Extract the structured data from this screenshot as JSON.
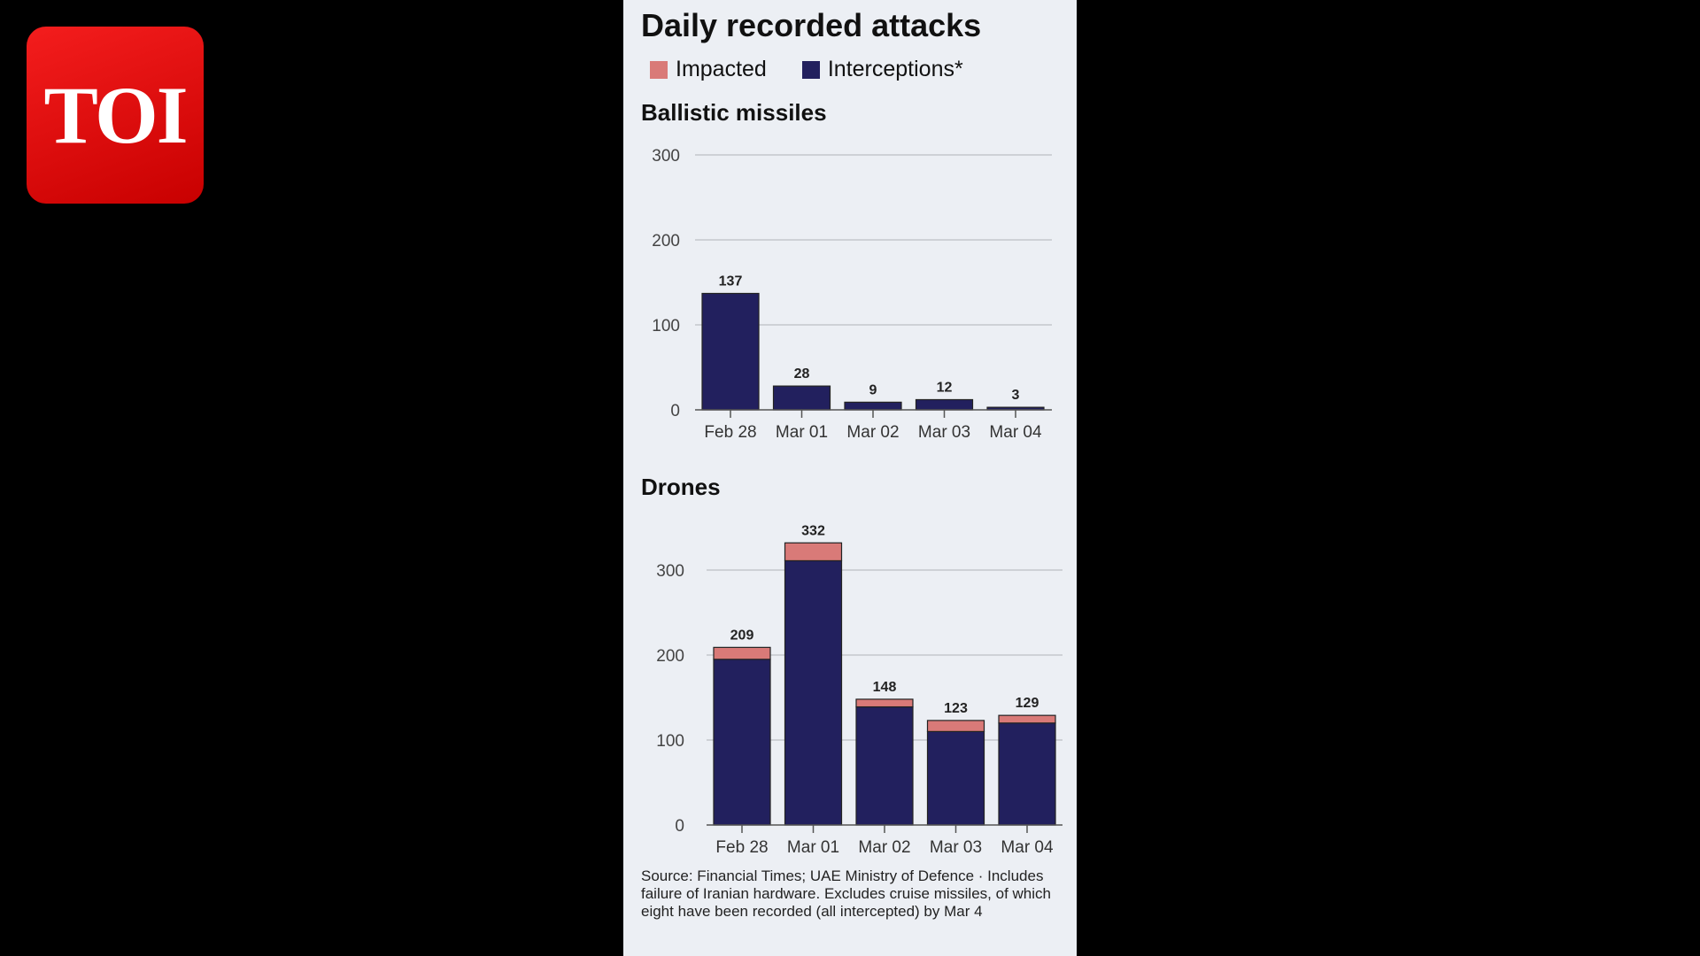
{
  "logo": {
    "text": "TOI",
    "color": "#e50000"
  },
  "title": "Daily recorded attacks",
  "legend": [
    {
      "label": "Impacted",
      "color": "#d97a78"
    },
    {
      "label": "Interceptions*",
      "color": "#22205e"
    }
  ],
  "source": "Source: Financial Times; UAE Ministry of Defence · Includes failure of Iranian hardware. Excludes cruise missiles, of which eight have been recorded (all intercepted) by Mar 4",
  "chart_data": [
    {
      "type": "bar",
      "title": "Ballistic missiles",
      "categories": [
        "Feb 28",
        "Mar 01",
        "Mar 02",
        "Mar 03",
        "Mar 04"
      ],
      "series": [
        {
          "name": "Interceptions*",
          "values": [
            137,
            28,
            9,
            12,
            3
          ]
        },
        {
          "name": "Impacted",
          "values": [
            0,
            0,
            0,
            0,
            0
          ]
        }
      ],
      "totals": [
        137,
        28,
        9,
        12,
        3
      ],
      "ylim": [
        0,
        300
      ],
      "yticks": [
        0,
        100,
        200,
        300
      ],
      "grid": true,
      "stacked": true
    },
    {
      "type": "bar",
      "title": "Drones",
      "categories": [
        "Feb 28",
        "Mar 01",
        "Mar 02",
        "Mar 03",
        "Mar 04"
      ],
      "series": [
        {
          "name": "Interceptions*",
          "values": [
            195,
            311,
            139,
            110,
            120
          ]
        },
        {
          "name": "Impacted",
          "values": [
            14,
            21,
            9,
            13,
            9
          ]
        }
      ],
      "totals": [
        209,
        332,
        148,
        123,
        129
      ],
      "ylim": [
        0,
        332
      ],
      "yticks": [
        0,
        100,
        200,
        300
      ],
      "grid": true,
      "stacked": true
    }
  ]
}
